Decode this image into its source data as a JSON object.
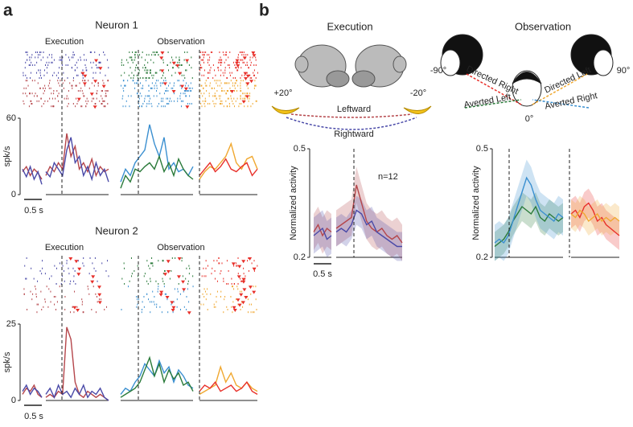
{
  "panel_a": {
    "label": "a",
    "ylabel": "spk/s",
    "scale_label": "0.5 s",
    "neurons": [
      {
        "title": "Neuron 1",
        "execution_label": "Execution",
        "observation_label": "Observation",
        "ylim": [
          0,
          60
        ],
        "yticks": [
          0,
          60
        ],
        "segments": [
          {
            "colors": [
              "#b5464b",
              "#4a4aa8"
            ],
            "values": [
              [
                18,
                22,
                15,
                20,
                17,
                12
              ],
              [
                20,
                14,
                22,
                12,
                18,
                8
              ]
            ]
          },
          {
            "colors": [
              "#b5464b",
              "#4a4aa8"
            ],
            "values": [
              [
                15,
                22,
                18,
                25,
                20,
                48,
                30,
                38,
                20,
                25,
                18,
                28,
                15,
                22,
                18,
                20
              ],
              [
                18,
                14,
                25,
                20,
                15,
                35,
                45,
                25,
                30,
                15,
                22,
                12,
                25,
                15,
                20,
                10
              ]
            ]
          },
          {
            "colors": [
              "#3a8fd0",
              "#2a7a3a"
            ],
            "values": [
              [
                10,
                20,
                15,
                25,
                30,
                35,
                55,
                40,
                30,
                45,
                20,
                25,
                18,
                20,
                15,
                22
              ],
              [
                5,
                15,
                10,
                20,
                18,
                22,
                25,
                20,
                30,
                18,
                25,
                15,
                28,
                20,
                15,
                12
              ]
            ]
          },
          {
            "colors": [
              "#f0a830",
              "#e8302a"
            ],
            "values": [
              [
                12,
                18,
                22,
                20,
                25,
                30,
                40,
                25,
                20,
                28,
                30,
                20
              ],
              [
                15,
                20,
                25,
                18,
                22,
                28,
                20,
                18,
                22,
                25,
                15,
                20
              ]
            ]
          }
        ]
      },
      {
        "title": "Neuron 2",
        "execution_label": "Execution",
        "observation_label": "Observation",
        "ylim": [
          0,
          25
        ],
        "yticks": [
          0,
          25
        ],
        "segments": [
          {
            "colors": [
              "#b5464b",
              "#4a4aa8"
            ],
            "values": [
              [
                2,
                4,
                3,
                5,
                2,
                1
              ],
              [
                3,
                5,
                2,
                4,
                3,
                1
              ]
            ]
          },
          {
            "colors": [
              "#b5464b",
              "#4a4aa8"
            ],
            "values": [
              [
                1,
                2,
                1,
                3,
                2,
                24,
                20,
                6,
                2,
                1,
                3,
                2,
                1,
                2,
                1,
                0
              ],
              [
                2,
                4,
                1,
                5,
                2,
                3,
                1,
                4,
                2,
                5,
                1,
                3,
                2,
                4,
                1,
                0
              ]
            ]
          },
          {
            "colors": [
              "#3a8fd0",
              "#2a7a3a"
            ],
            "values": [
              [
                2,
                4,
                3,
                6,
                8,
                12,
                10,
                8,
                13,
                9,
                11,
                6,
                10,
                8,
                5,
                4
              ],
              [
                1,
                2,
                3,
                4,
                6,
                10,
                14,
                8,
                12,
                6,
                10,
                7,
                9,
                5,
                6,
                3
              ]
            ]
          },
          {
            "colors": [
              "#f0a830",
              "#e8302a"
            ],
            "values": [
              [
                2,
                3,
                4,
                5,
                11,
                6,
                9,
                5,
                4,
                6,
                4,
                3
              ],
              [
                3,
                5,
                4,
                6,
                3,
                4,
                5,
                3,
                4,
                6,
                3,
                2
              ]
            ]
          }
        ]
      }
    ]
  },
  "panel_b": {
    "label": "b",
    "execution": {
      "title": "Execution",
      "angles": [
        "+20°",
        "-20°"
      ],
      "n_label": "n=12",
      "ylabel": "Normalized activity",
      "scale_label": "0.5 s",
      "ylim": [
        0.2,
        0.5
      ],
      "yticks": [
        0.2,
        0.5
      ],
      "series": [
        {
          "name": "Leftward",
          "color": "#b5464b"
        },
        {
          "name": "Rightward",
          "color": "#4a4aa8"
        }
      ],
      "segments": [
        {
          "values": [
            [
              0.27,
              0.29,
              0.26,
              0.28,
              0.27
            ],
            [
              0.26,
              0.27,
              0.28,
              0.25,
              0.26
            ]
          ],
          "error": [
            0.05,
            0.05
          ]
        },
        {
          "values": [
            [
              0.28,
              0.29,
              0.3,
              0.31,
              0.4,
              0.35,
              0.3,
              0.28,
              0.27,
              0.28,
              0.26,
              0.25,
              0.26,
              0.24
            ],
            [
              0.27,
              0.28,
              0.27,
              0.29,
              0.33,
              0.32,
              0.29,
              0.3,
              0.27,
              0.26,
              0.25,
              0.24,
              0.23,
              0.23
            ]
          ],
          "error": [
            0.05,
            0.04
          ]
        }
      ]
    },
    "observation": {
      "title": "Observation",
      "angles": [
        "-90°",
        "0°",
        "90°"
      ],
      "ylabel": "Normalized activity",
      "ylim": [
        0.2,
        0.5
      ],
      "yticks": [
        0.2,
        0.5
      ],
      "series": [
        {
          "name": "Directed Right",
          "color": "#e8302a"
        },
        {
          "name": "Averted Left",
          "color": "#2a7a3a"
        },
        {
          "name": "Directed Left",
          "color": "#f0a830"
        },
        {
          "name": "Averted Right",
          "color": "#3a8fd0"
        }
      ],
      "segments": [
        {
          "values": [
            null,
            [
              0.23,
              0.24,
              0.25,
              0.27,
              0.3,
              0.32,
              0.34,
              0.33,
              0.32,
              0.34,
              0.31,
              0.3,
              0.32,
              0.31,
              0.3,
              0.31
            ],
            null,
            [
              0.24,
              0.25,
              0.24,
              0.26,
              0.3,
              0.34,
              0.38,
              0.42,
              0.4,
              0.36,
              0.33,
              0.32,
              0.31,
              0.3,
              0.32,
              0.31
            ]
          ],
          "error": [
            null,
            0.04,
            null,
            0.05
          ]
        },
        {
          "values": [
            [
              0.32,
              0.33,
              0.31,
              0.34,
              0.35,
              0.33,
              0.3,
              0.31,
              0.29,
              0.28,
              0.27,
              0.26
            ],
            null,
            [
              0.32,
              0.31,
              0.33,
              0.32,
              0.3,
              0.31,
              0.32,
              0.3,
              0.31,
              0.3,
              0.31,
              0.3
            ],
            null
          ],
          "error": [
            0.04,
            null,
            0.04,
            null
          ]
        }
      ]
    }
  }
}
